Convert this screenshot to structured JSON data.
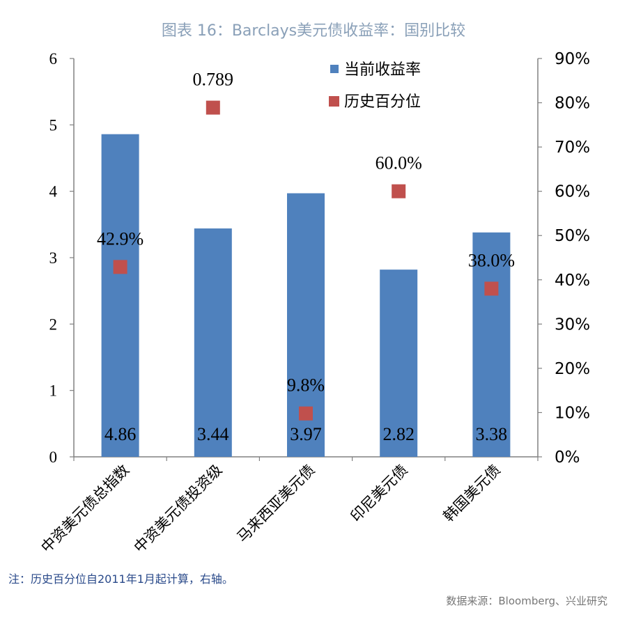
{
  "title": "图表 16：Barclays美元债收益率：国别比较",
  "note": "注：历史百分位自2011年1月起计算，右轴。",
  "source": "数据来源：Bloomberg、兴业研究",
  "colors": {
    "bar": "#4f81bd",
    "marker": "#c0504d",
    "axis": "#808080",
    "title": "#8aa0b8"
  },
  "chart_data": {
    "type": "bar",
    "categories": [
      "中资美元债总指数",
      "中资美元债投资级",
      "马来西亚美元债",
      "印尼美元债",
      "韩国美元债"
    ],
    "series": [
      {
        "name": "当前收益率",
        "type": "bar",
        "axis": "left",
        "values": [
          4.86,
          3.44,
          3.97,
          2.82,
          3.38
        ],
        "labels": [
          "4.86",
          "3.44",
          "3.97",
          "2.82",
          "3.38"
        ]
      },
      {
        "name": "历史百分位",
        "type": "scatter",
        "axis": "right",
        "values": [
          0.429,
          0.789,
          0.098,
          0.6,
          0.38
        ],
        "labels": [
          "42.9%",
          "0.789",
          "9.8%",
          "60.0%",
          "38.0%"
        ]
      }
    ],
    "y_left": {
      "min": 0,
      "max": 6,
      "ticks": [
        "0",
        "1",
        "2",
        "3",
        "4",
        "5",
        "6"
      ]
    },
    "y_right": {
      "min": 0,
      "max": 0.9,
      "ticks": [
        "0%",
        "10%",
        "20%",
        "30%",
        "40%",
        "50%",
        "60%",
        "70%",
        "80%",
        "90%"
      ]
    },
    "legend_position": "top-right",
    "grid": false
  }
}
